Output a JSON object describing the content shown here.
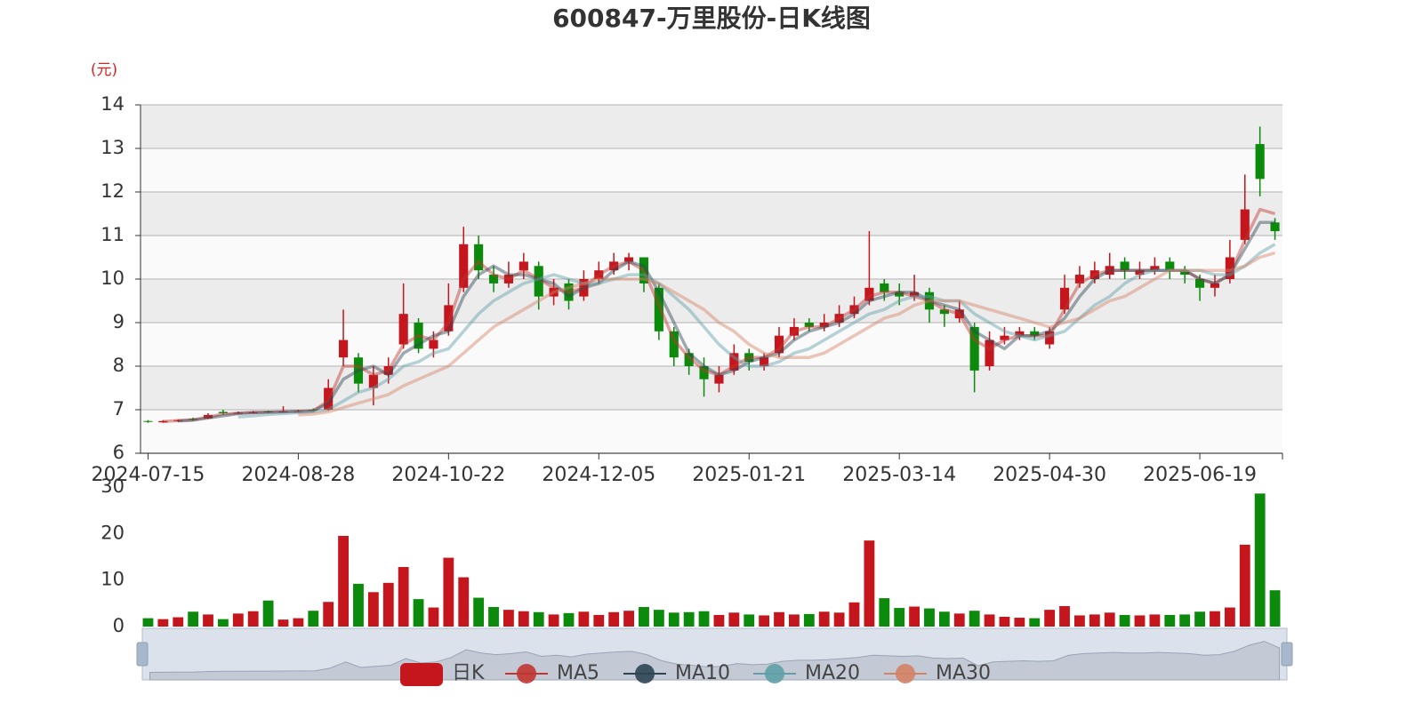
{
  "chart_data": {
    "type": "candlestick",
    "title": "600847-万里股份-日K线图",
    "y_unit": "(元)",
    "ylim": [
      6,
      14
    ],
    "yticks": [
      6,
      7,
      8,
      9,
      10,
      11,
      12,
      13,
      14
    ],
    "grid": true,
    "up_color": "#c4161c",
    "down_color": "#0b8a0b",
    "categories": [
      "2024-07-15",
      null,
      null,
      null,
      null,
      null,
      null,
      null,
      null,
      null,
      "2024-08-28",
      null,
      null,
      null,
      null,
      null,
      null,
      null,
      null,
      null,
      "2024-10-22",
      null,
      null,
      null,
      null,
      null,
      null,
      null,
      null,
      null,
      "2024-12-05",
      null,
      null,
      null,
      null,
      null,
      null,
      null,
      null,
      null,
      "2025-01-21",
      null,
      null,
      null,
      null,
      null,
      null,
      null,
      null,
      null,
      "2025-03-14",
      null,
      null,
      null,
      null,
      null,
      null,
      null,
      null,
      null,
      "2025-04-30",
      null,
      null,
      null,
      null,
      null,
      null,
      null,
      null,
      null,
      "2025-06-19",
      null,
      null,
      null,
      null,
      null
    ],
    "series": [
      {
        "name": "日K",
        "color": "#c23531",
        "values": [
          [
            6.74,
            6.72,
            6.7,
            6.76
          ],
          [
            6.71,
            6.74,
            6.7,
            6.76
          ],
          [
            6.74,
            6.76,
            6.72,
            6.78
          ],
          [
            6.79,
            6.78,
            6.75,
            6.82
          ],
          [
            6.8,
            6.88,
            6.79,
            6.92
          ],
          [
            6.95,
            6.92,
            6.89,
            7.0
          ],
          [
            6.91,
            6.93,
            6.9,
            6.96
          ],
          [
            6.92,
            6.94,
            6.91,
            6.97
          ],
          [
            6.96,
            6.95,
            6.93,
            6.98
          ],
          [
            6.94,
            6.96,
            6.93,
            7.08
          ],
          [
            6.96,
            6.97,
            6.94,
            7.0
          ],
          [
            7.0,
            6.99,
            6.97,
            7.03
          ],
          [
            7.0,
            7.5,
            6.98,
            7.7
          ],
          [
            8.2,
            8.6,
            8.0,
            9.3
          ],
          [
            8.2,
            7.6,
            7.4,
            8.3
          ],
          [
            7.5,
            7.8,
            7.1,
            8.0
          ],
          [
            7.8,
            8.0,
            7.6,
            8.2
          ],
          [
            8.5,
            9.2,
            8.4,
            9.9
          ],
          [
            9.0,
            8.4,
            8.3,
            9.1
          ],
          [
            8.4,
            8.6,
            8.2,
            8.8
          ],
          [
            8.8,
            9.4,
            8.7,
            9.9
          ],
          [
            9.8,
            10.8,
            9.7,
            11.2
          ],
          [
            10.8,
            10.2,
            10.0,
            11.0
          ],
          [
            10.1,
            9.9,
            9.7,
            10.3
          ],
          [
            9.9,
            10.1,
            9.8,
            10.4
          ],
          [
            10.2,
            10.4,
            10.0,
            10.6
          ],
          [
            10.3,
            9.6,
            9.3,
            10.4
          ],
          [
            9.6,
            9.8,
            9.4,
            10.0
          ],
          [
            9.9,
            9.5,
            9.3,
            10.0
          ],
          [
            9.6,
            10.0,
            9.5,
            10.2
          ],
          [
            10.0,
            10.2,
            9.9,
            10.4
          ],
          [
            10.2,
            10.4,
            10.1,
            10.6
          ],
          [
            10.4,
            10.5,
            10.2,
            10.6
          ],
          [
            10.5,
            9.9,
            9.7,
            10.5
          ],
          [
            9.8,
            8.8,
            8.6,
            9.9
          ],
          [
            8.8,
            8.2,
            8.0,
            8.9
          ],
          [
            8.3,
            8.0,
            7.8,
            8.4
          ],
          [
            8.0,
            7.7,
            7.3,
            8.2
          ],
          [
            7.6,
            7.8,
            7.4,
            8.0
          ],
          [
            7.9,
            8.3,
            7.8,
            8.5
          ],
          [
            8.3,
            8.1,
            7.9,
            8.4
          ],
          [
            8.0,
            8.2,
            7.9,
            8.3
          ],
          [
            8.3,
            8.7,
            8.2,
            8.9
          ],
          [
            8.7,
            8.9,
            8.6,
            9.1
          ],
          [
            9.0,
            8.9,
            8.8,
            9.1
          ],
          [
            8.9,
            9.0,
            8.8,
            9.2
          ],
          [
            9.0,
            9.2,
            8.9,
            9.4
          ],
          [
            9.2,
            9.4,
            9.1,
            9.6
          ],
          [
            9.5,
            9.8,
            9.4,
            11.1
          ],
          [
            9.9,
            9.7,
            9.5,
            10.0
          ],
          [
            9.7,
            9.6,
            9.4,
            9.9
          ],
          [
            9.6,
            9.7,
            9.5,
            10.1
          ],
          [
            9.7,
            9.3,
            9.0,
            9.8
          ],
          [
            9.3,
            9.2,
            8.9,
            9.4
          ],
          [
            9.1,
            9.3,
            9.0,
            9.5
          ],
          [
            8.9,
            7.9,
            7.4,
            9.0
          ],
          [
            8.0,
            8.6,
            7.9,
            8.8
          ],
          [
            8.6,
            8.7,
            8.5,
            8.9
          ],
          [
            8.7,
            8.8,
            8.6,
            8.9
          ],
          [
            8.8,
            8.7,
            8.6,
            8.9
          ],
          [
            8.5,
            8.8,
            8.4,
            8.9
          ],
          [
            9.3,
            9.8,
            9.2,
            10.1
          ],
          [
            9.9,
            10.1,
            9.8,
            10.3
          ],
          [
            10.0,
            10.2,
            9.9,
            10.4
          ],
          [
            10.1,
            10.3,
            10.0,
            10.6
          ],
          [
            10.4,
            10.2,
            10.0,
            10.5
          ],
          [
            10.1,
            10.2,
            10.0,
            10.4
          ],
          [
            10.2,
            10.3,
            10.1,
            10.5
          ],
          [
            10.4,
            10.2,
            10.0,
            10.5
          ],
          [
            10.2,
            10.1,
            9.9,
            10.3
          ],
          [
            10.0,
            9.8,
            9.5,
            10.1
          ],
          [
            9.8,
            9.9,
            9.6,
            10.1
          ],
          [
            10.0,
            10.5,
            9.9,
            10.9
          ],
          [
            10.9,
            11.6,
            10.8,
            12.4
          ],
          [
            13.1,
            12.3,
            11.9,
            13.5
          ],
          [
            11.3,
            11.1,
            10.9,
            11.4
          ]
        ]
      },
      {
        "name": "MA5",
        "color": "#c23531",
        "values": [
          null,
          6.73,
          6.75,
          6.77,
          6.83,
          6.9,
          6.92,
          6.94,
          6.94,
          6.95,
          6.96,
          6.98,
          7.2,
          8.0,
          8.0,
          7.8,
          7.9,
          8.5,
          8.7,
          8.6,
          9.0,
          10.0,
          10.4,
          10.1,
          10.0,
          10.2,
          10.0,
          9.8,
          9.7,
          9.8,
          10.1,
          10.3,
          10.4,
          10.2,
          9.4,
          8.6,
          8.2,
          7.9,
          7.8,
          8.0,
          8.2,
          8.2,
          8.4,
          8.8,
          8.9,
          8.9,
          9.1,
          9.3,
          9.6,
          9.7,
          9.7,
          9.6,
          9.5,
          9.3,
          9.2,
          8.6,
          8.4,
          8.6,
          8.7,
          8.7,
          8.7,
          9.3,
          9.9,
          10.1,
          10.2,
          10.2,
          10.2,
          10.2,
          10.2,
          10.2,
          10.0,
          9.9,
          10.1,
          10.9,
          11.6,
          11.5
        ]
      },
      {
        "name": "MA10",
        "color": "#2f4554",
        "values": [
          null,
          null,
          6.74,
          6.76,
          6.81,
          6.86,
          6.91,
          6.93,
          6.94,
          6.95,
          6.96,
          6.97,
          7.15,
          7.7,
          7.9,
          8.0,
          7.8,
          8.3,
          8.5,
          8.7,
          8.8,
          9.6,
          10.1,
          10.3,
          10.1,
          10.1,
          10.0,
          9.9,
          9.6,
          9.8,
          9.9,
          10.2,
          10.4,
          10.3,
          9.7,
          9.0,
          8.3,
          8.0,
          7.8,
          7.9,
          8.1,
          8.2,
          8.3,
          8.6,
          8.8,
          8.9,
          9.0,
          9.2,
          9.5,
          9.6,
          9.7,
          9.7,
          9.5,
          9.4,
          9.3,
          8.8,
          8.6,
          8.4,
          8.7,
          8.7,
          8.8,
          9.1,
          9.6,
          10.0,
          10.2,
          10.2,
          10.2,
          10.2,
          10.2,
          10.2,
          10.0,
          9.9,
          10.1,
          10.7,
          11.3,
          11.3
        ]
      },
      {
        "name": "MA20",
        "color": "#61a0a8",
        "values": [
          null,
          null,
          null,
          null,
          null,
          null,
          6.83,
          6.86,
          6.89,
          6.91,
          6.93,
          6.95,
          7.0,
          7.2,
          7.4,
          7.5,
          7.7,
          8.0,
          8.1,
          8.3,
          8.4,
          8.8,
          9.2,
          9.5,
          9.7,
          9.9,
          10.0,
          10.1,
          10.0,
          9.9,
          9.9,
          10.0,
          10.1,
          10.1,
          9.9,
          9.6,
          9.3,
          8.9,
          8.5,
          8.2,
          8.0,
          8.0,
          8.1,
          8.3,
          8.4,
          8.6,
          8.8,
          9.0,
          9.2,
          9.3,
          9.5,
          9.6,
          9.6,
          9.5,
          9.5,
          9.2,
          9.0,
          8.8,
          8.7,
          8.6,
          8.7,
          8.8,
          9.1,
          9.4,
          9.6,
          9.9,
          10.1,
          10.2,
          10.2,
          10.2,
          10.2,
          10.1,
          10.1,
          10.3,
          10.6,
          10.8
        ]
      },
      {
        "name": "MA30",
        "color": "#d48265",
        "values": [
          null,
          null,
          null,
          null,
          null,
          null,
          null,
          null,
          null,
          null,
          6.88,
          6.9,
          6.95,
          7.05,
          7.15,
          7.25,
          7.35,
          7.55,
          7.7,
          7.85,
          8.0,
          8.3,
          8.6,
          8.9,
          9.1,
          9.3,
          9.5,
          9.7,
          9.8,
          9.9,
          10.0,
          10.0,
          10.0,
          10.0,
          9.9,
          9.7,
          9.5,
          9.3,
          9.0,
          8.8,
          8.5,
          8.3,
          8.2,
          8.2,
          8.2,
          8.3,
          8.5,
          8.7,
          8.9,
          9.1,
          9.2,
          9.4,
          9.5,
          9.5,
          9.5,
          9.4,
          9.3,
          9.2,
          9.1,
          9.0,
          8.9,
          9.0,
          9.1,
          9.3,
          9.5,
          9.6,
          9.8,
          10.0,
          10.2,
          10.2,
          10.2,
          10.2,
          10.2,
          10.3,
          10.5,
          10.6
        ]
      }
    ],
    "volume": {
      "ylim": [
        0,
        30
      ],
      "yticks": [
        0,
        10,
        20,
        30
      ],
      "values": [
        1.8,
        1.6,
        2.0,
        3.2,
        2.6,
        1.6,
        2.8,
        3.3,
        5.6,
        1.5,
        1.8,
        3.4,
        5.3,
        19.5,
        9.2,
        7.4,
        9.4,
        12.8,
        5.9,
        4.1,
        14.8,
        10.6,
        6.2,
        4.2,
        3.6,
        3.3,
        3.1,
        2.6,
        2.9,
        3.2,
        2.5,
        3.1,
        3.4,
        4.2,
        3.6,
        3.0,
        3.1,
        3.3,
        2.5,
        3.0,
        2.6,
        2.4,
        3.1,
        2.6,
        2.7,
        3.2,
        3.0,
        5.2,
        18.5,
        6.1,
        4.0,
        4.3,
        3.9,
        3.2,
        2.8,
        3.4,
        2.6,
        2.1,
        1.9,
        1.8,
        3.6,
        4.4,
        2.4,
        2.6,
        3.0,
        2.5,
        2.4,
        2.6,
        2.5,
        2.6,
        3.2,
        3.3,
        4.1,
        17.6,
        28.6,
        7.8
      ]
    }
  }
}
